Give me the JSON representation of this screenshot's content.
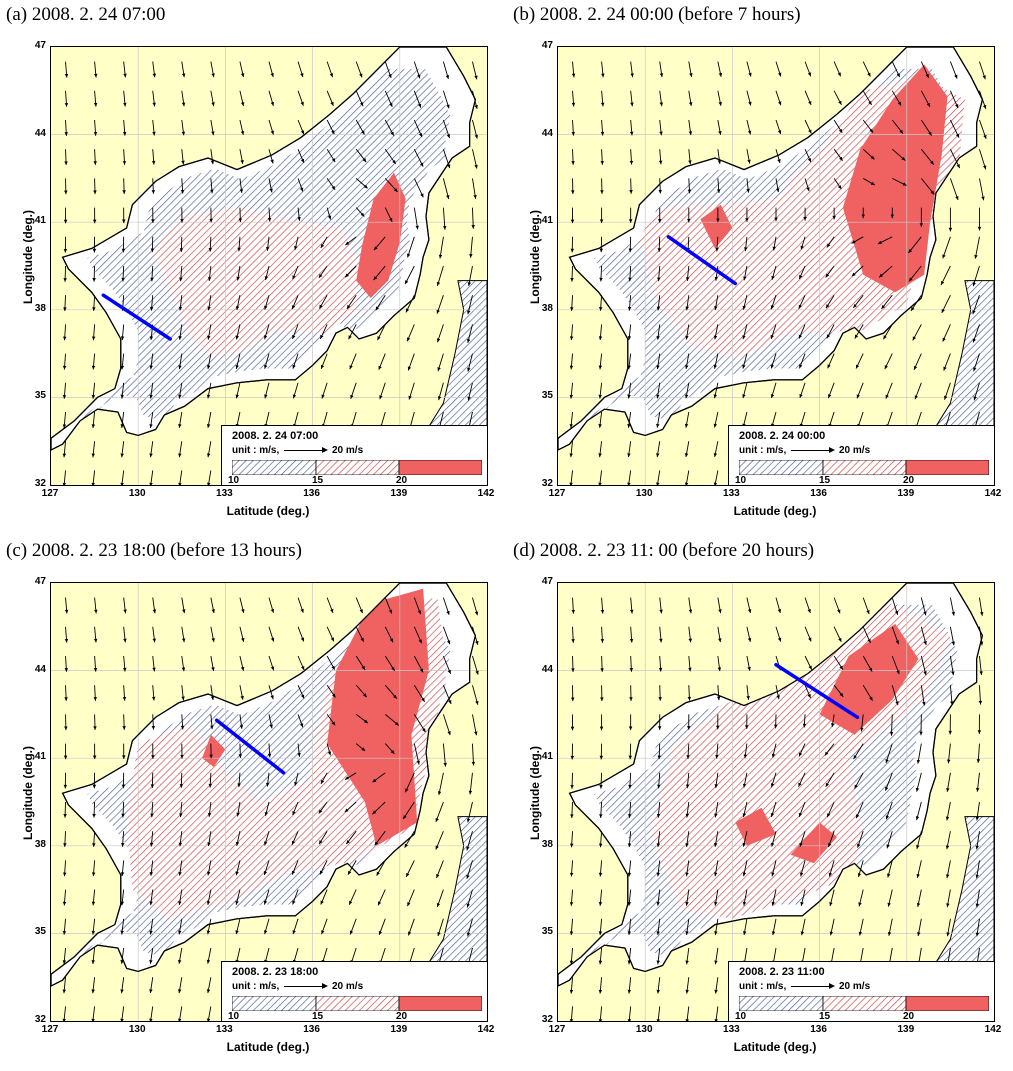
{
  "colors": {
    "land": "#ffffc8",
    "sea_below_10": "#ffffff",
    "band_10_15": "#4a5a9a",
    "band_15_20": "#d04040",
    "band_20_plus": "#f06262",
    "track": "#0000ff"
  },
  "axes": {
    "xlabel": "Latitude (deg.)",
    "ylabel": "Longitude (deg.)",
    "xticks": [
      "127",
      "130",
      "133",
      "136",
      "139",
      "142"
    ],
    "yticks": [
      "47",
      "44",
      "41",
      "38",
      "35",
      "32"
    ]
  },
  "legend": {
    "unit": "unit : m/s,",
    "reference_arrow": "20 m/s",
    "breaks": [
      "10",
      "15",
      "20"
    ]
  },
  "panels": [
    {
      "caption": "(a) 2008. 2. 24 07:00",
      "legend_time": "2008. 2. 24  07:00",
      "track": [
        [
          128.8,
          38.5
        ],
        [
          131.1,
          37.0
        ]
      ],
      "zones": {
        "z15": [
          [
            130.5,
            40.0
          ],
          [
            131.5,
            41.2
          ],
          [
            133.5,
            41.5
          ],
          [
            135.5,
            41.0
          ],
          [
            137.0,
            40.8
          ],
          [
            137.6,
            39.5
          ],
          [
            137.5,
            38.0
          ],
          [
            136.5,
            37.2
          ],
          [
            134.8,
            37.3
          ],
          [
            133.6,
            36.6
          ],
          [
            132.6,
            36.4
          ],
          [
            131.8,
            37.0
          ],
          [
            131.2,
            38.5
          ]
        ],
        "z20": [
          [
            137.5,
            39.0
          ],
          [
            137.7,
            40.2
          ],
          [
            138.1,
            41.8
          ],
          [
            138.8,
            42.7
          ],
          [
            139.2,
            41.8
          ],
          [
            139.0,
            40.3
          ],
          [
            138.6,
            39.0
          ],
          [
            138.0,
            38.4
          ]
        ]
      },
      "flow": {
        "vortex": [
          138.7,
          41.2
        ],
        "vortex_strength": 0.9
      }
    },
    {
      "caption": "(b) 2008. 2. 24 00:00 (before 7 hours)",
      "legend_time": "2008. 2. 24  00:00",
      "track": [
        [
          130.8,
          40.5
        ],
        [
          133.1,
          38.9
        ]
      ],
      "zones": {
        "z15": [
          [
            129.8,
            40.5
          ],
          [
            130.5,
            41.5
          ],
          [
            132.5,
            41.6
          ],
          [
            134.5,
            41.8
          ],
          [
            136.0,
            43.5
          ],
          [
            137.5,
            45.5
          ],
          [
            139.5,
            46.0
          ],
          [
            141.0,
            45.2
          ],
          [
            140.8,
            43.0
          ],
          [
            139.6,
            40.5
          ],
          [
            139.0,
            38.2
          ],
          [
            137.5,
            37.3
          ],
          [
            135.0,
            37.2
          ],
          [
            133.2,
            36.3
          ],
          [
            131.5,
            36.8
          ],
          [
            130.4,
            38.3
          ]
        ],
        "z20": [
          [
            136.8,
            41.5
          ],
          [
            137.4,
            43.5
          ],
          [
            138.5,
            45.2
          ],
          [
            139.6,
            46.4
          ],
          [
            140.4,
            45.3
          ],
          [
            140.2,
            43.3
          ],
          [
            139.8,
            41.0
          ],
          [
            139.6,
            39.2
          ],
          [
            138.6,
            38.6
          ],
          [
            137.5,
            39.2
          ]
        ],
        "z20b": [
          [
            131.9,
            41.1
          ],
          [
            132.6,
            41.6
          ],
          [
            133.0,
            40.8
          ],
          [
            132.4,
            40.1
          ]
        ]
      },
      "flow": {
        "vortex": [
          139.3,
          41.5
        ],
        "vortex_strength": 1.1
      }
    },
    {
      "caption": "(c) 2008. 2. 23 18:00 (before 13 hours)",
      "legend_time": "2008. 2. 23  18:00",
      "track": [
        [
          132.7,
          42.3
        ],
        [
          135.0,
          40.5
        ]
      ],
      "zones": {
        "z15": [
          [
            129.6,
            39.0
          ],
          [
            130.0,
            41.5
          ],
          [
            131.8,
            42.2
          ],
          [
            133.0,
            40.5
          ],
          [
            134.2,
            39.5
          ],
          [
            135.8,
            40.2
          ],
          [
            136.5,
            43.5
          ],
          [
            138.2,
            46.2
          ],
          [
            140.3,
            46.5
          ],
          [
            140.6,
            44.0
          ],
          [
            140.0,
            41.0
          ],
          [
            139.4,
            38.6
          ],
          [
            137.5,
            37.5
          ],
          [
            135.0,
            37.0
          ],
          [
            133.0,
            36.0
          ],
          [
            131.0,
            35.5
          ],
          [
            129.8,
            36.5
          ]
        ],
        "z20": [
          [
            136.5,
            41.5
          ],
          [
            136.8,
            44.0
          ],
          [
            138.0,
            46.3
          ],
          [
            139.8,
            46.8
          ],
          [
            140.0,
            44.0
          ],
          [
            139.4,
            41.8
          ],
          [
            139.6,
            38.8
          ],
          [
            138.2,
            38.0
          ],
          [
            137.8,
            39.5
          ]
        ],
        "z20b": [
          [
            132.2,
            41.0
          ],
          [
            132.5,
            41.8
          ],
          [
            133.0,
            41.3
          ],
          [
            132.6,
            40.7
          ]
        ]
      },
      "flow": {
        "vortex": [
          139.0,
          41.2
        ],
        "vortex_strength": 1.0
      }
    },
    {
      "caption": "(d) 2008. 2. 23 11: 00 (before 20 hours)",
      "legend_time": "2008. 2. 23  11:00",
      "track": [
        [
          134.5,
          44.2
        ],
        [
          137.3,
          42.4
        ]
      ],
      "zones": {
        "z15": [
          [
            130.2,
            38.5
          ],
          [
            131.0,
            41.5
          ],
          [
            133.0,
            43.0
          ],
          [
            135.0,
            43.8
          ],
          [
            136.5,
            45.5
          ],
          [
            138.5,
            46.3
          ],
          [
            140.5,
            45.2
          ],
          [
            139.6,
            43.0
          ],
          [
            138.2,
            42.0
          ],
          [
            137.0,
            41.0
          ],
          [
            137.5,
            38.5
          ],
          [
            137.2,
            37.0
          ],
          [
            135.5,
            36.3
          ],
          [
            133.0,
            35.5
          ],
          [
            131.2,
            35.8
          ]
        ],
        "z20": [
          [
            136.0,
            42.5
          ],
          [
            137.0,
            44.5
          ],
          [
            138.6,
            45.6
          ],
          [
            139.4,
            44.4
          ],
          [
            138.5,
            43.0
          ],
          [
            137.2,
            41.8
          ]
        ],
        "z20b": [
          [
            133.1,
            38.8
          ],
          [
            134.0,
            39.3
          ],
          [
            134.5,
            38.4
          ],
          [
            133.5,
            38.0
          ]
        ],
        "z20c": [
          [
            135.0,
            37.7
          ],
          [
            136.0,
            38.8
          ],
          [
            136.6,
            38.3
          ],
          [
            135.8,
            37.4
          ]
        ]
      },
      "flow": {
        "vortex": [
          137.5,
          42.6
        ],
        "vortex_strength": 0.7
      }
    }
  ]
}
